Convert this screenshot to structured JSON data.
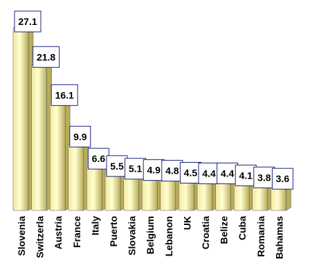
{
  "chart_data": {
    "type": "bar",
    "style": "3d-cylinder",
    "categories": [
      "Slovenia",
      "Switzerla",
      "Austria",
      "France",
      "Italy",
      "Puerto",
      "Slovakia",
      "Belgium",
      "Lebanon",
      "UK",
      "Croatia",
      "Belize",
      "Cuba",
      "Romania",
      "Bahamas"
    ],
    "values": [
      27.1,
      21.8,
      16.1,
      9.9,
      6.6,
      5.5,
      5.1,
      4.9,
      4.8,
      4.5,
      4.4,
      4.4,
      4.1,
      3.8,
      3.6
    ],
    "value_labels": [
      "27.1",
      "21.8",
      "16.1",
      "9.9",
      "6.6",
      "5.5",
      "5.1",
      "4.9",
      "4.8",
      "4.5",
      "4.4",
      "4.4",
      "4.1",
      "3.8",
      "3.6"
    ],
    "title": "",
    "xlabel": "",
    "ylabel": "",
    "ylim": [
      0,
      30
    ],
    "grid": false,
    "legend": "none",
    "colors": {
      "bar_light": "#ffffd0",
      "bar_mid": "#f2e8a0",
      "bar_dark": "#b8ad5a",
      "label_border": "#1a237e"
    }
  }
}
